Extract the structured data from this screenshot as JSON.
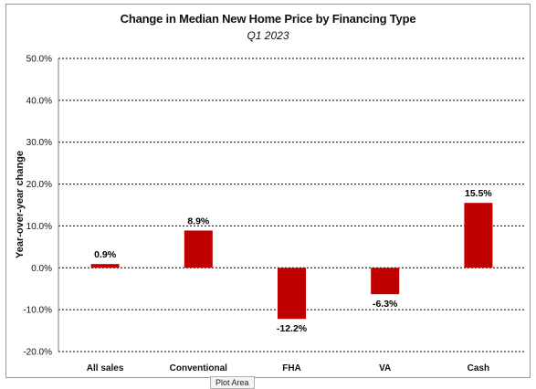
{
  "chart_data": {
    "type": "bar",
    "title": "Change in Median New Home Price by Financing Type",
    "subtitle": "Q1 2023",
    "ylabel": "Year-over-year change",
    "xlabel": "",
    "categories": [
      "All sales",
      "Conventional",
      "FHA",
      "VA",
      "Cash"
    ],
    "values": [
      0.9,
      8.9,
      -12.2,
      -6.3,
      15.5
    ],
    "data_labels": [
      "0.9%",
      "8.9%",
      "-12.2%",
      "-6.3%",
      "15.5%"
    ],
    "ylim": [
      -20,
      50
    ],
    "yticks": [
      50,
      40,
      30,
      20,
      10,
      0,
      -10,
      -20
    ],
    "ytick_labels": [
      "50.0%",
      "40.0%",
      "30.0%",
      "20.0%",
      "10.0%",
      "0.0%",
      "-10.0%",
      "-20.0%"
    ],
    "grid": "horizontal-dashed",
    "legend": "none",
    "bar_color": "#c00000"
  },
  "tooltip": "Plot Area"
}
